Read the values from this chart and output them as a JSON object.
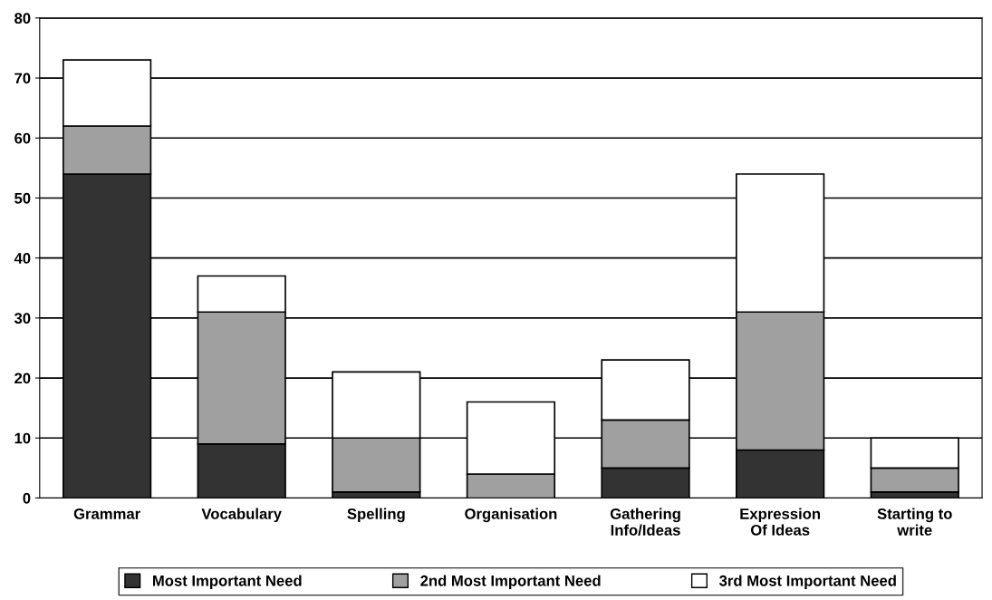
{
  "chart_data": {
    "type": "bar",
    "stacked": true,
    "categories": [
      "Grammar",
      "Vocabulary",
      "Spelling",
      "Organisation",
      "Gathering\nInfo/Ideas",
      "Expression\nOf Ideas",
      "Starting to\nwrite"
    ],
    "series": [
      {
        "name": "Most Important Need",
        "color": "#333333",
        "values": [
          54,
          9,
          1,
          0,
          5,
          8,
          1
        ]
      },
      {
        "name": "2nd Most Important Need",
        "color": "#a0a0a0",
        "values": [
          8,
          22,
          9,
          4,
          8,
          23,
          4
        ]
      },
      {
        "name": "3rd Most Important Need",
        "color": "#ffffff",
        "values": [
          11,
          6,
          11,
          12,
          10,
          23,
          5
        ]
      }
    ],
    "ylim": [
      0,
      80
    ],
    "yticks": [
      0,
      10,
      20,
      30,
      40,
      50,
      60,
      70,
      80
    ],
    "grid": "y",
    "legend": "bottom"
  }
}
